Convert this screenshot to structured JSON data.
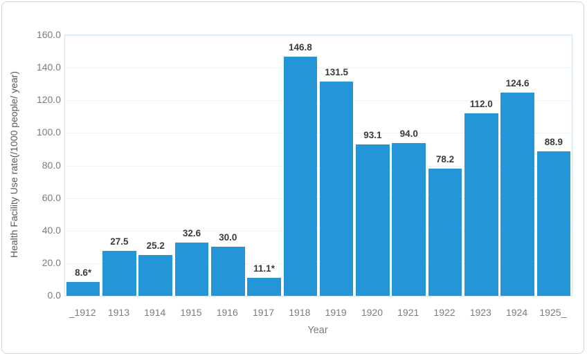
{
  "chart_data": {
    "type": "bar",
    "title": "",
    "xlabel": "Year",
    "ylabel": "Health Facility Use rate(/1000 people/ year)",
    "categories": [
      "_1912",
      "1913",
      "1914",
      "1915",
      "1916",
      "1917",
      "1918",
      "1919",
      "1920",
      "1921",
      "1922",
      "1923",
      "1924",
      "1925_"
    ],
    "values": [
      8.6,
      27.5,
      25.2,
      32.6,
      30.0,
      11.1,
      146.8,
      131.5,
      93.1,
      94.0,
      78.2,
      112.0,
      124.6,
      88.9
    ],
    "data_labels": [
      "8.6*",
      "27.5",
      "25.2",
      "32.6",
      "30.0",
      "11.1*",
      "146.8",
      "131.5",
      "93.1",
      "94.0",
      "78.2",
      "112.0",
      "124.6",
      "88.9"
    ],
    "ylim": [
      0,
      160
    ],
    "ytick_labels": [
      "0.0",
      "20.0",
      "40.0",
      "60.0",
      "80.0",
      "100.0",
      "120.0",
      "140.0",
      "160.0"
    ],
    "ytick_values": [
      0,
      20,
      40,
      60,
      80,
      100,
      120,
      140,
      160
    ],
    "grid": true,
    "legend_position": "none",
    "bar_color": "#2495D6"
  },
  "colors": {
    "bar": "#2495D6",
    "gridline": "#edf2f8",
    "plot_border": "#d3e2f0",
    "tick_text": "#7b7b7b",
    "data_label_text": "#3a3a3a",
    "frame_border": "#d6d6d6",
    "background": "#ffffff"
  }
}
